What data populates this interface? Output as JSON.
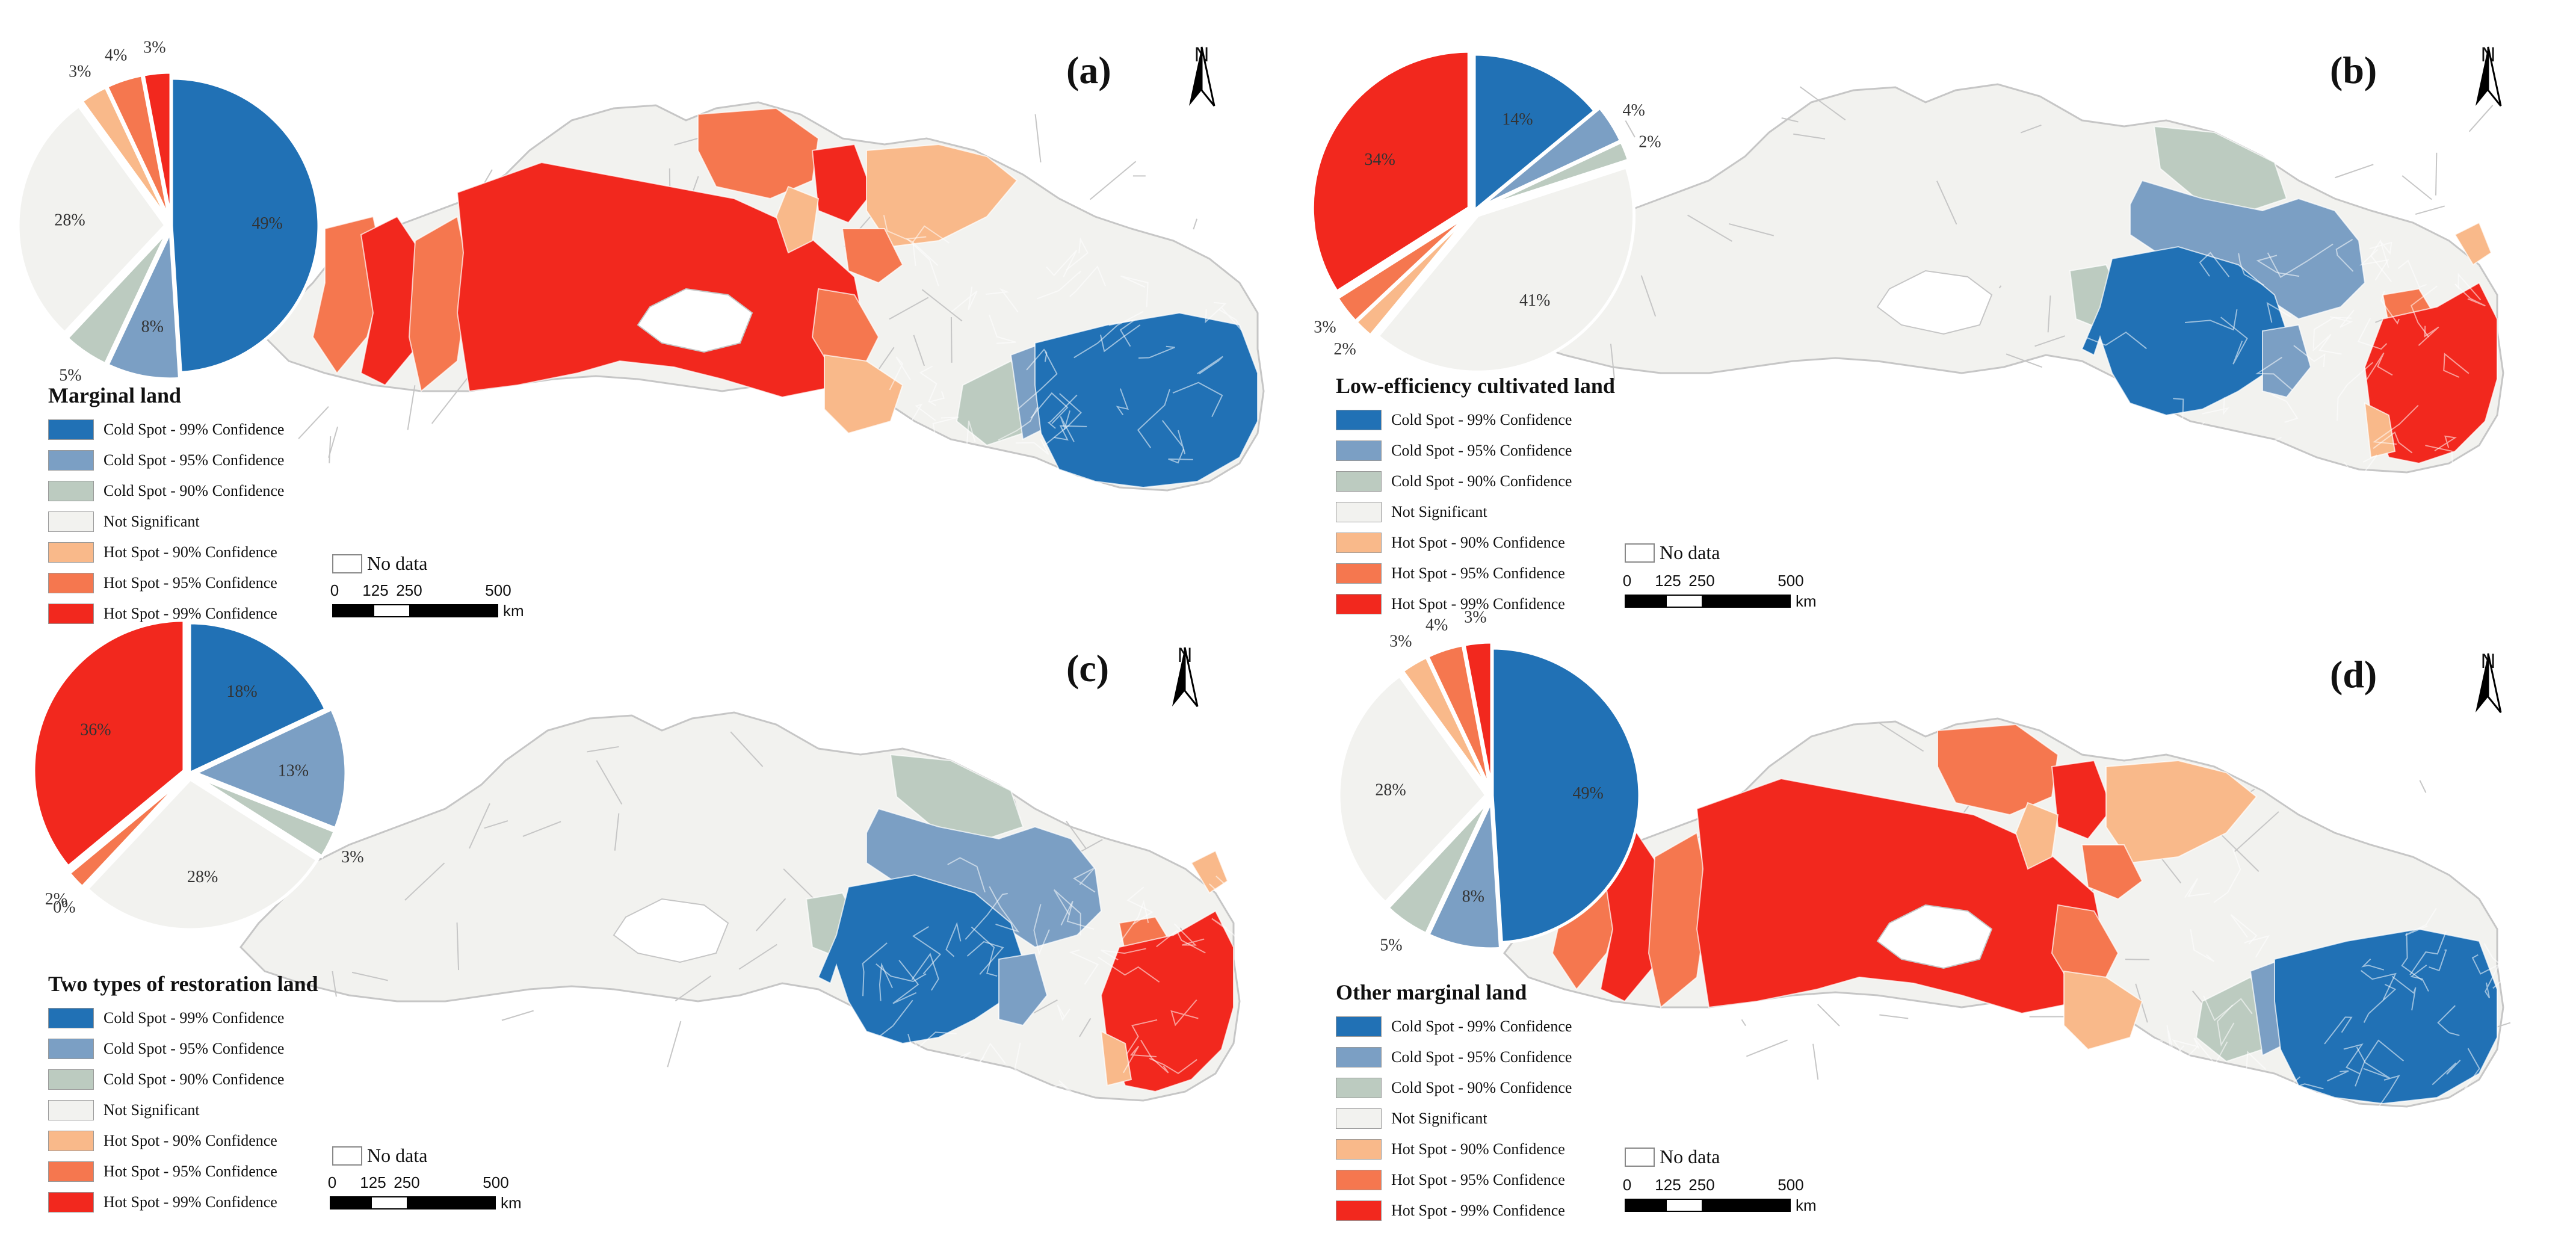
{
  "palette": {
    "cold99": "#2171b5",
    "cold95": "#7b9fc4",
    "cold90": "#bccbc0",
    "notsig": "#f2f2ef",
    "hot90": "#f9b98a",
    "hot95": "#f5774f",
    "hot99": "#f2281e",
    "boundary": "#c6c6c6"
  },
  "legend_entries": [
    "Cold Spot - 99% Confidence",
    "Cold Spot - 95% Confidence",
    "Cold Spot - 90% Confidence",
    "Not Significant",
    "Hot Spot - 90% Confidence",
    "Hot Spot - 95% Confidence",
    "Hot Spot - 99% Confidence"
  ],
  "no_data_label": "No data",
  "north_label": "N",
  "scale": {
    "ticks": [
      "0",
      "125",
      "250",
      "500"
    ],
    "unit": "km"
  },
  "panels": [
    {
      "id": "a",
      "label": "(a)",
      "title": "Marginal land",
      "pie_labels": [
        "49%",
        "8%",
        "5%",
        "28%",
        "3%",
        "4%",
        "3%"
      ],
      "pie_values": [
        49,
        8,
        5,
        28,
        3,
        4,
        3
      ],
      "map_pattern": "east-cold-west-hot"
    },
    {
      "id": "b",
      "label": "(b)",
      "title": "Low-efficiency cultivated land",
      "pie_labels": [
        "14%",
        "4%",
        "2%",
        "41%",
        "2%",
        "3%",
        "34%"
      ],
      "pie_values": [
        14,
        4,
        2,
        41,
        2,
        3,
        34
      ],
      "map_pattern": "center-cold-east-hot"
    },
    {
      "id": "c",
      "label": "(c)",
      "title": "Two types of restoration land",
      "pie_labels": [
        "18%",
        "13%",
        "3%",
        "28%",
        "0%",
        "2%",
        "36%"
      ],
      "pie_values": [
        18,
        13,
        3,
        28,
        0,
        2,
        36
      ],
      "map_pattern": "center-cold-east-hot"
    },
    {
      "id": "d",
      "label": "(d)",
      "title": "Other marginal land",
      "pie_labels": [
        "49%",
        "8%",
        "5%",
        "28%",
        "3%",
        "4%",
        "3%"
      ],
      "pie_values": [
        49,
        8,
        5,
        28,
        3,
        4,
        3
      ],
      "map_pattern": "east-cold-west-hot"
    }
  ]
}
